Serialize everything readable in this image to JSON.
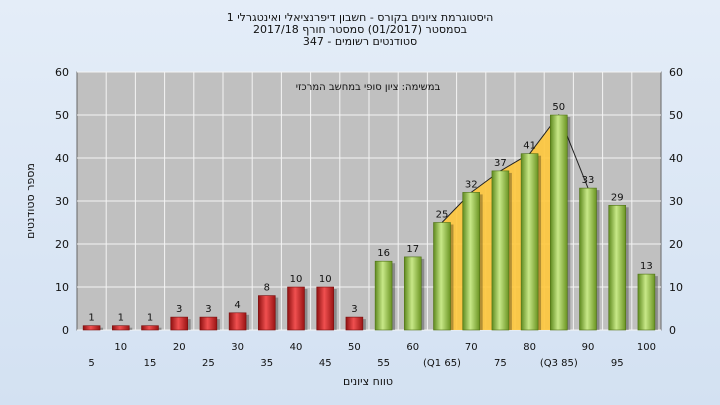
{
  "chart_data": {
    "type": "bar",
    "title": "היסטוגרמת ציונים בקורס - חשבון דיפרנציאלי ואינטגרלי 1",
    "subtitle_lines": [
      "בסמסטר  (01/2017)  סמסטר חורף 2017/18",
      "סטודנטים רשומים - 347"
    ],
    "annotation": "במשימה: ציון סופי במחשב המרכזי",
    "xlabel": "טווח ציונים",
    "ylabel": "מספר סטודנטים",
    "ylim": [
      0,
      60
    ],
    "yticks": [
      0,
      10,
      20,
      30,
      40,
      50,
      60
    ],
    "categories": [
      "5",
      "10",
      "15",
      "20",
      "25",
      "30",
      "35",
      "40",
      "45",
      "50",
      "55",
      "60",
      "(Q1 65)",
      "70",
      "75",
      "80",
      "(Q3 85)",
      "90",
      "95",
      "100"
    ],
    "values": [
      1,
      1,
      1,
      3,
      3,
      4,
      8,
      10,
      10,
      3,
      16,
      17,
      25,
      32,
      37,
      41,
      50,
      33,
      29,
      13
    ],
    "value_labels": [
      "1",
      "1",
      "1",
      "3",
      "3",
      "4",
      "8",
      "10",
      "10",
      "3",
      "16",
      "17",
      "25",
      "32",
      "37",
      "41",
      "50",
      "33",
      "29",
      "13"
    ],
    "fail_threshold_index": 10,
    "quartile_range": {
      "from": "(Q1 65)",
      "to": "(Q3 85)"
    },
    "grid": true,
    "colors": {
      "fail": "#d02828",
      "pass": "#8cbf3c",
      "quartile_fill": "#ffc83c",
      "plot_bg": "#c0c0c0"
    }
  }
}
